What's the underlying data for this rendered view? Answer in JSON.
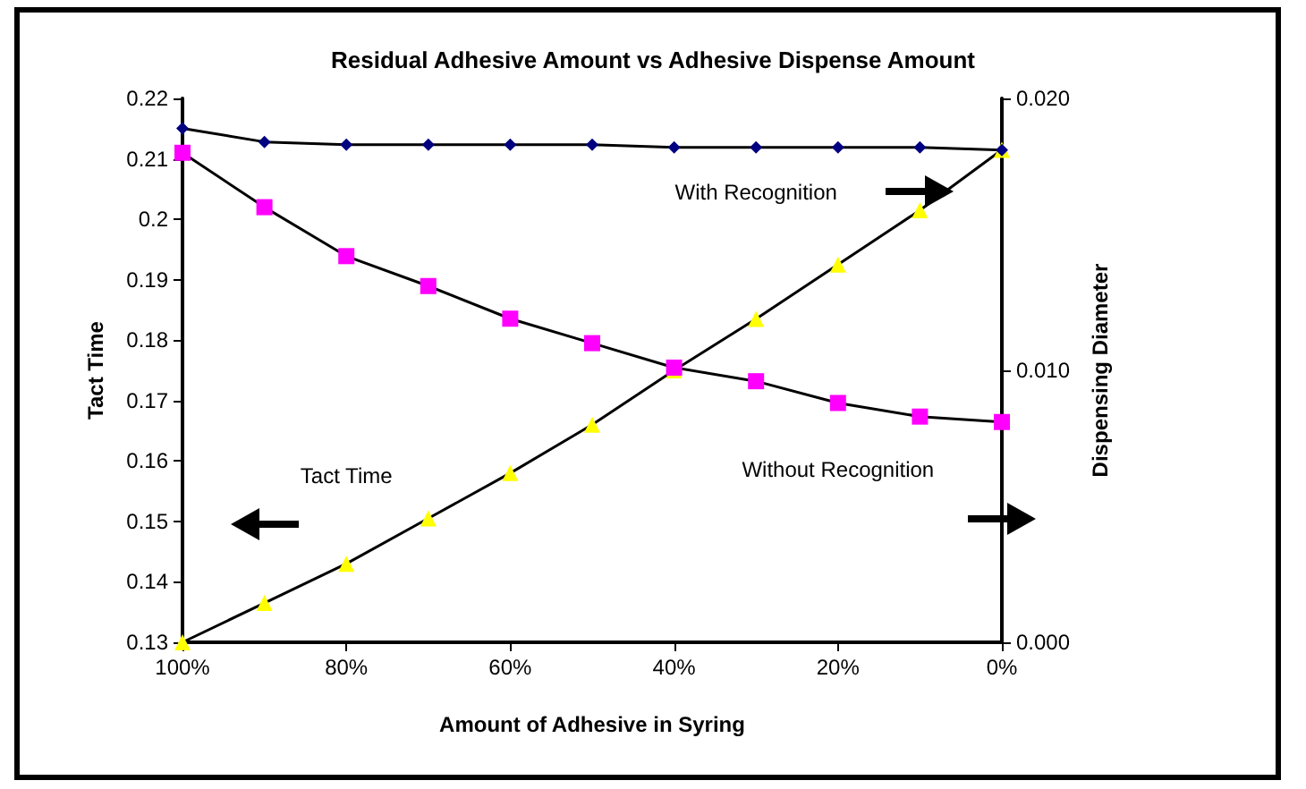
{
  "chart_data": {
    "type": "line",
    "title": "Residual Adhesive Amount vs Adhesive Dispense Amount",
    "xlabel": "Amount of Adhesive in Syring",
    "ylabel": "Tact Time",
    "y2label": "Dispensing Diameter",
    "categories": [
      "100%",
      null,
      "80%",
      null,
      "60%",
      null,
      "40%",
      null,
      "20%",
      null,
      "0%"
    ],
    "series": [
      {
        "color": "#ffff00",
        "marker": "triangle",
        "values": [
          0.13,
          0.1365,
          0.143,
          0.1505,
          0.158,
          0.166,
          0.175,
          0.1835,
          0.1925,
          0.2015,
          0.2115
        ]
      },
      {
        "color": "#ff00ff",
        "marker": "square",
        "axis": "y2",
        "values": [
          0.018,
          0.016,
          0.0142,
          0.0131,
          0.0119,
          0.011,
          0.0101,
          0.0096,
          0.0088,
          0.0083,
          0.0081
        ]
      },
      {
        "color": "#000080",
        "marker": "diamond",
        "axis": "y2",
        "values": [
          0.0189,
          0.0184,
          0.0183,
          0.0183,
          0.0183,
          0.0183,
          0.0182,
          0.0182,
          0.0182,
          0.0182,
          0.0181
        ]
      }
    ],
    "ylim": [
      0.13,
      0.22
    ],
    "yticks": [
      0.13,
      0.14,
      0.15,
      0.16,
      0.17,
      0.18,
      0.19,
      0.2,
      0.21,
      0.22
    ],
    "y2lim": [
      0,
      0.02
    ],
    "y2ticks": [
      {
        "value": 0,
        "label": "0.000"
      },
      {
        "value": 0.01,
        "label": "0.010"
      },
      {
        "value": 0.02,
        "label": "0.020"
      }
    ],
    "grid": false,
    "line_style": "solid",
    "annotations": [
      "With Recognition",
      "Without Recognition",
      "Tact Time"
    ]
  }
}
